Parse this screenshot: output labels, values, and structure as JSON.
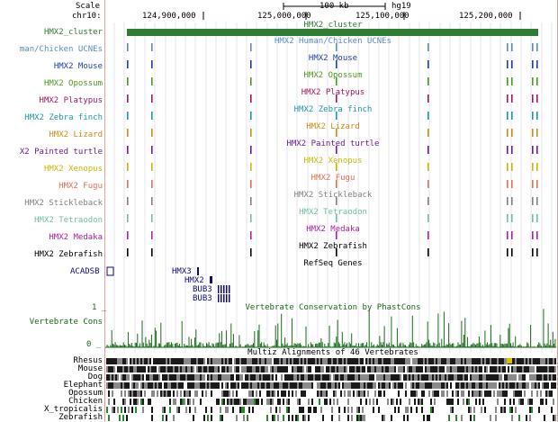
{
  "ruler": {
    "scale_label": "Scale",
    "chrom_label": "chr10:",
    "scale_value": "100 kb",
    "assembly": "hg19",
    "ticks": [
      "124,900,000",
      "125,000,000",
      "125,100,000",
      "125,200,000"
    ]
  },
  "cluster": {
    "label": "HMX2_cluster",
    "title": "HMX2_cluster",
    "color": "#2e7d32"
  },
  "tracks": [
    {
      "label": "man/Chicken UCNEs",
      "title": "HMX2 Human/Chicken UCNEs",
      "color": "#5b8bc7"
    },
    {
      "label": "HMX2 Mouse",
      "title": "HMX2 Mouse",
      "color": "#1f3fa8"
    },
    {
      "label": "HMX2 Opossum",
      "title": "HMX2 Opossum",
      "color": "#4a9a1e"
    },
    {
      "label": "HMX2 Platypus",
      "title": "HMX2 Platypus",
      "color": "#a01860"
    },
    {
      "label": "HMX2 Zebra finch",
      "title": "HMX2 Zebra finch",
      "color": "#1a9aa8"
    },
    {
      "label": "HMX2 Lizard",
      "title": "HMX2 Lizard",
      "color": "#d08a10"
    },
    {
      "label": "X2 Painted turtle",
      "title": "HMX2 Painted turtle",
      "color": "#6a1a9a"
    },
    {
      "label": "HMX2 Xenopus",
      "title": "HMX2 Xenopus",
      "color": "#c8b800"
    },
    {
      "label": "HMX2 Fugu",
      "title": "HMX2 Fugu",
      "color": "#e07050"
    },
    {
      "label": "HMX2 Stickleback",
      "title": "HMX2 Stickleback",
      "color": "#808080"
    },
    {
      "label": "HMX2 Tetraodon",
      "title": "HMX2 Tetraodon",
      "color": "#70c0a0"
    },
    {
      "label": "HMX2 Medaka",
      "title": "HMX2 Medaka",
      "color": "#b020a0"
    },
    {
      "label": "HMX2 Zebrafish",
      "title": "HMX2 Zebrafish",
      "color": "#000000"
    }
  ],
  "refseq": {
    "title": "RefSeq Genes",
    "left_gene": "ACADSB",
    "genes": [
      "HMX3",
      "HMX2",
      "BUB3",
      "BUB3"
    ]
  },
  "conservation": {
    "title": "Vertebrate Conservation by PhastCons",
    "label": "Vertebrate Cons",
    "ymax": "1 _",
    "ymin": "0 _",
    "color": "#1a6a1a"
  },
  "multiz": {
    "title": "Multiz Alignments of 46 Vertebrates",
    "species": [
      "Rhesus",
      "Mouse",
      "Dog",
      "Elephant",
      "Opossum",
      "Chicken",
      "X_tropicalis",
      "Zebrafish"
    ]
  }
}
